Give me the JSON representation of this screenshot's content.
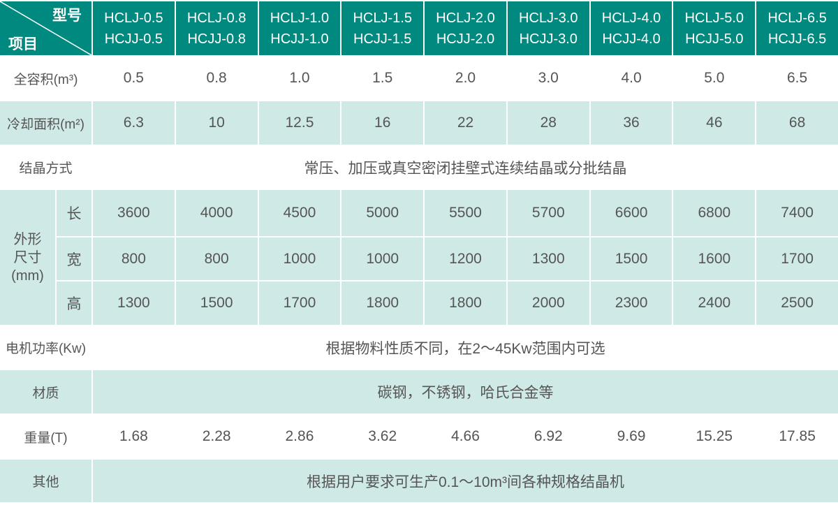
{
  "colors": {
    "header": "#00897e",
    "light_row": "#cfe9e6",
    "text": "#555555"
  },
  "corner": {
    "top_right": "型号",
    "bottom_left": "项目"
  },
  "models": [
    [
      "HCLJ-0.5",
      "HCJJ-0.5"
    ],
    [
      "HCLJ-0.8",
      "HCJJ-0.8"
    ],
    [
      "HCLJ-1.0",
      "HCJJ-1.0"
    ],
    [
      "HCLJ-1.5",
      "HCJJ-1.5"
    ],
    [
      "HCLJ-2.0",
      "HCJJ-2.0"
    ],
    [
      "HCLJ-3.0",
      "HCJJ-3.0"
    ],
    [
      "HCLJ-4.0",
      "HCJJ-4.0"
    ],
    [
      "HCLJ-5.0",
      "HCJJ-5.0"
    ],
    [
      "HCLJ-6.5",
      "HCJJ-6.5"
    ]
  ],
  "rows": {
    "volume": {
      "label": "全容积(m³)",
      "values": [
        "0.5",
        "0.8",
        "1.0",
        "1.5",
        "2.0",
        "3.0",
        "4.0",
        "5.0",
        "6.5"
      ]
    },
    "cooling": {
      "label": "冷却面积(m²)",
      "values": [
        "6.3",
        "10",
        "12.5",
        "16",
        "22",
        "28",
        "36",
        "46",
        "68"
      ]
    },
    "crystal": {
      "label": "结晶方式",
      "text": "常压、加压或真空密闭挂壁式连续结晶或分批结晶"
    },
    "dimensions": {
      "label_lines": [
        "外形",
        "尺寸",
        "(mm)"
      ],
      "length": {
        "label": "长",
        "values": [
          "3600",
          "4000",
          "4500",
          "5000",
          "5500",
          "5700",
          "6600",
          "6800",
          "7400"
        ]
      },
      "width": {
        "label": "宽",
        "values": [
          "800",
          "800",
          "1000",
          "1000",
          "1200",
          "1300",
          "1500",
          "1600",
          "1700"
        ]
      },
      "height": {
        "label": "高",
        "values": [
          "1300",
          "1500",
          "1700",
          "1800",
          "1800",
          "2000",
          "2300",
          "2400",
          "2500"
        ]
      }
    },
    "motor": {
      "label": "电机功率(Kw)",
      "text": "根据物料性质不同，在2～45Kw范围内可选"
    },
    "material": {
      "label": "材质",
      "text": "碳钢，不锈钢，哈氏合金等"
    },
    "weight": {
      "label": "重量(T)",
      "values": [
        "1.68",
        "2.28",
        "2.86",
        "3.62",
        "4.66",
        "6.92",
        "9.69",
        "15.25",
        "17.85"
      ]
    },
    "other": {
      "label": "其他",
      "text": "根据用户要求可生产0.1～10m³间各种规格结晶机"
    }
  }
}
